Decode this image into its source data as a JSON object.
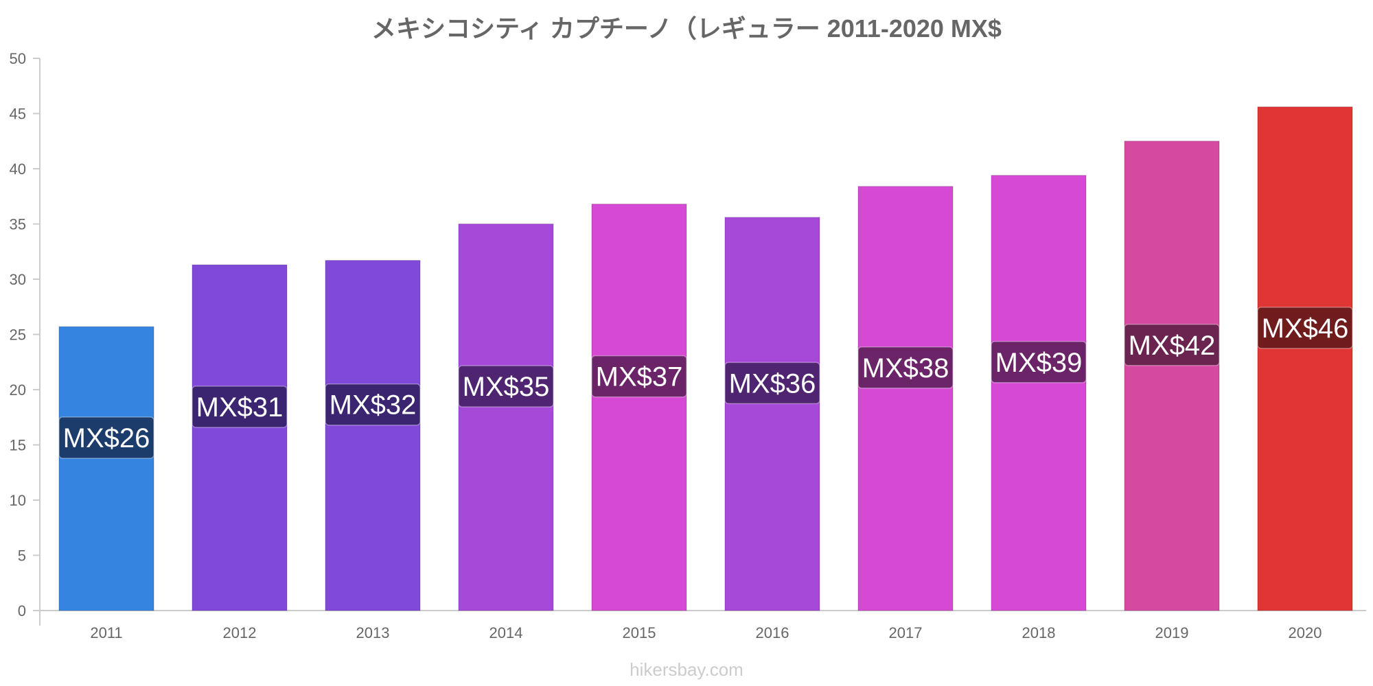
{
  "chart_data": {
    "type": "bar",
    "title": "メキシコシティ カプチーノ（レギュラー 2011-2020 MX$",
    "categories": [
      "2011",
      "2012",
      "2013",
      "2014",
      "2015",
      "2016",
      "2017",
      "2018",
      "2019",
      "2020"
    ],
    "values": [
      25.7,
      31.3,
      31.7,
      35.0,
      36.8,
      35.6,
      38.4,
      39.4,
      42.5,
      45.6
    ],
    "data_labels": [
      "MX$26",
      "MX$31",
      "MX$32",
      "MX$35",
      "MX$37",
      "MX$36",
      "MX$38",
      "MX$39",
      "MX$42",
      "MX$46"
    ],
    "bar_colors": [
      "#3584e0",
      "#8149d9",
      "#8149d9",
      "#a649d9",
      "#d649d4",
      "#a649d9",
      "#d649d4",
      "#d649d4",
      "#d649a0",
      "#e03535"
    ],
    "label_colors": [
      "#1c3d6b",
      "#3b2470",
      "#3b2470",
      "#4f2470",
      "#6b2468",
      "#4f2470",
      "#6b2468",
      "#6b2468",
      "#6b2450",
      "#701c1c"
    ],
    "ylim": [
      0,
      50
    ],
    "yticks": [
      0,
      5,
      10,
      15,
      20,
      25,
      30,
      35,
      40,
      45,
      50
    ],
    "xlabel": "",
    "ylabel": "",
    "grid": false,
    "legend": "none"
  },
  "watermark": "hikersbay.com"
}
